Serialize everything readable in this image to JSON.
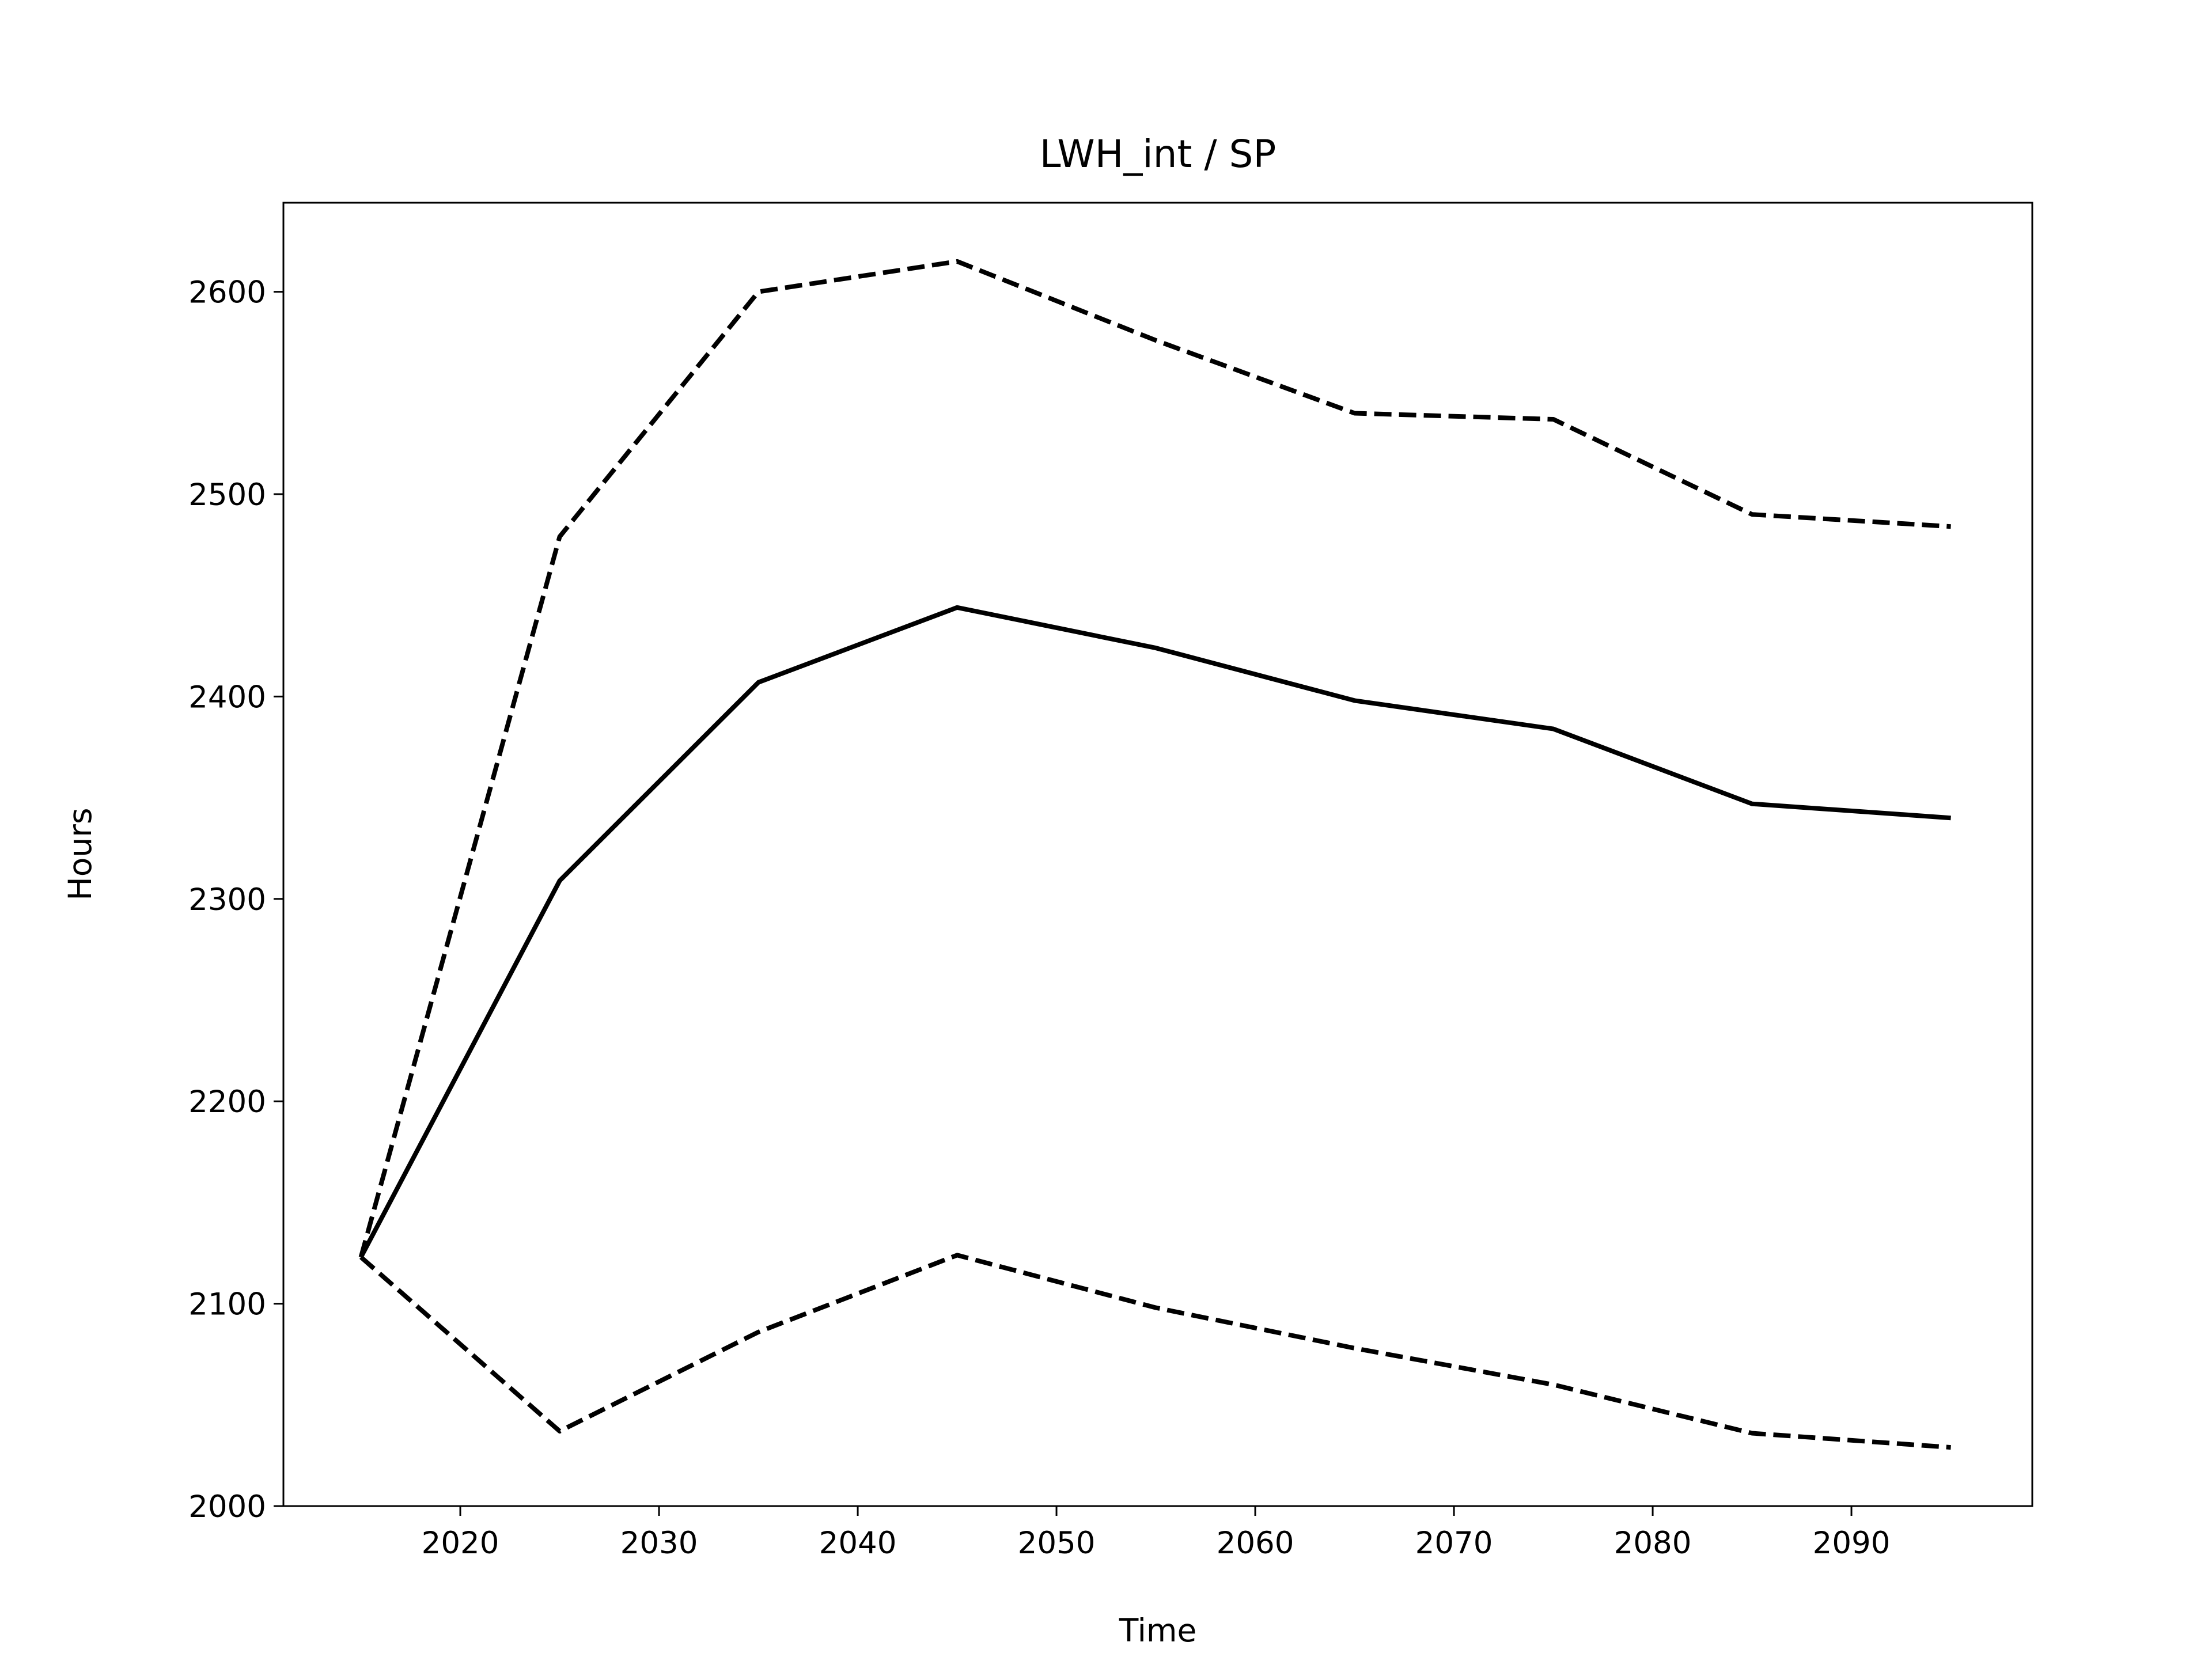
{
  "chart_data": {
    "type": "line",
    "title": "LWH_int / SP",
    "x_label": "Time",
    "y_label": "Hours",
    "x": [
      2015,
      2025,
      2035,
      2045,
      2055,
      2065,
      2075,
      2085,
      2095
    ],
    "series": [
      {
        "color": "#000000",
        "linestyle": "solid",
        "values": [
          2123,
          2309,
          2407,
          2444,
          2424,
          2398,
          2384,
          2347,
          2340
        ]
      },
      {
        "color": "#000000",
        "linestyle": "dashed",
        "values": [
          2123,
          2479,
          2600,
          2615,
          2576,
          2540,
          2537,
          2490,
          2484
        ]
      },
      {
        "color": "#000000",
        "linestyle": "dashed",
        "values": [
          2123,
          2037,
          2086,
          2124,
          2098,
          2078,
          2060,
          2036,
          2029
        ]
      }
    ],
    "xlim": [
      2011.1,
      2099.1
    ],
    "ylim": [
      2000,
      2644
    ],
    "xticks": [
      2020,
      2030,
      2040,
      2050,
      2060,
      2070,
      2080,
      2090
    ],
    "yticks": [
      2000,
      2100,
      2200,
      2300,
      2400,
      2500,
      2600
    ],
    "grid": false
  }
}
